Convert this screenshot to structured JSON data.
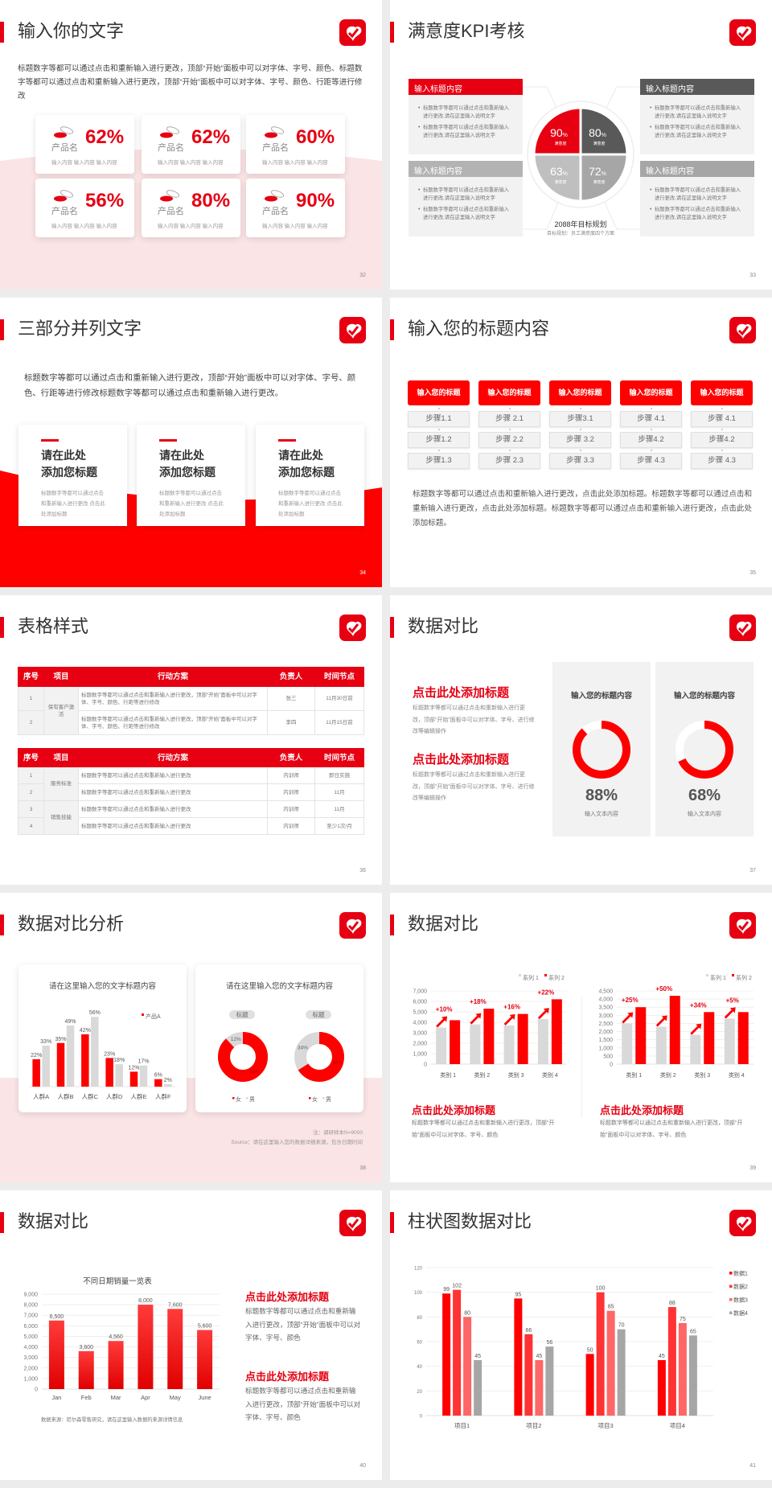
{
  "colors": {
    "accent": "#e60012",
    "dark_gray": "#595959",
    "mid_gray": "#a6a6a6",
    "light_gray": "#f2f2f2",
    "pink": "#fbe4e5"
  },
  "slides": {
    "s32": {
      "title": "输入你的文字",
      "page": "32",
      "body": "标题数字等都可以通过点击和重新输入进行更改，顶部“开始”面板中可以对字体、字号、颜色、标题数字等都可以通过点击和重新输入进行更改，顶部“开始”面板中可以对字体、字号、颜色、行距等进行修改",
      "cards": [
        {
          "icon": "pill-icon",
          "name": "产品名",
          "pct": "62%",
          "sub": "输入内容  输入内容  输入内容"
        },
        {
          "icon": "pill-icon",
          "name": "产品名",
          "pct": "62%",
          "sub": "输入内容  输入内容  输入内容"
        },
        {
          "icon": "pill-icon",
          "name": "产品名",
          "pct": "60%",
          "sub": "输入内容  输入内容  输入内容"
        },
        {
          "icon": "pill-icon",
          "name": "产品名",
          "pct": "56%",
          "sub": "输入内容  输入内容  输入内容"
        },
        {
          "icon": "pill-icon",
          "name": "产品名",
          "pct": "80%",
          "sub": "输入内容  输入内容  输入内容"
        },
        {
          "icon": "pill-icon",
          "name": "产品名",
          "pct": "90%",
          "sub": "输入内容  输入内容  输入内容"
        }
      ]
    },
    "s33": {
      "title": "满意度KPI考核",
      "page": "33",
      "boxes": [
        {
          "header": "输入标题内容",
          "header_color": "#e60012",
          "bullets": [
            "标题数字等都可以通过点击和重新输入进行更改,请在这里输入说明文字",
            "标题数字等都可以通过点击和重新输入进行更改,请在这里输入说明文字"
          ]
        },
        {
          "header": "输入标题内容",
          "header_color": "#595959",
          "bullets": [
            "标题数字等都可以通过点击和重新输入进行更改,请在这里输入说明文字",
            "标题数字等都可以通过点击和重新输入进行更改,请在这里输入说明文字"
          ]
        },
        {
          "header": "输入标题内容",
          "header_color": "#b3b3b3",
          "bullets": [
            "标题数字等都可以通过点击和重新输入进行更改,请在这里输入说明文字",
            "标题数字等都可以通过点击和重新输入进行更改,请在这里输入说明文字"
          ]
        },
        {
          "header": "输入标题内容",
          "header_color": "#a6a6a6",
          "bullets": [
            "标题数字等都可以通过点击和重新输入进行更改,请在这里输入说明文字",
            "标题数字等都可以通过点击和重新输入进行更改,请在这里输入说明文字"
          ]
        }
      ],
      "quadrants": [
        {
          "value": "90",
          "unit": "%",
          "label": "满意度",
          "color": "#e60012"
        },
        {
          "value": "80",
          "unit": "%",
          "label": "满意度",
          "color": "#595959"
        },
        {
          "value": "63",
          "unit": "%",
          "label": "满意度",
          "color": "#bfbfbf"
        },
        {
          "value": "72",
          "unit": "%",
          "label": "满意度",
          "color": "#a6a6a6"
        }
      ],
      "center_title": "2088年目标规划",
      "center_sub": "目标规划：员工满意度四个方面"
    },
    "s34": {
      "title": "三部分并列文字",
      "page": "34",
      "body": "标题数字等都可以通过点击和重新输入进行更改，顶部“开始”面板中可以对字体、字号、颜色、行距等进行修改标题数字等都可以通过点击和重新输入进行更改。",
      "cards": [
        {
          "title1": "请在此处",
          "title2": "添加您标题",
          "text": "标题数字等都可以通过点击和重新输入进行更改  点击此处添加标题"
        },
        {
          "title1": "请在此处",
          "title2": "添加您标题",
          "text": "标题数字等都可以通过点击和重新输入进行更改  点击此处添加标题"
        },
        {
          "title1": "请在此处",
          "title2": "添加您标题",
          "text": "标题数字等都可以通过点击和重新输入进行更改  点击此处添加标题"
        }
      ]
    },
    "s35": {
      "title": "输入您的标题内容",
      "page": "35",
      "columns": [
        {
          "header": "输入您的标题",
          "steps": [
            "步骤1.1",
            "步骤1.2",
            "步骤1.3"
          ]
        },
        {
          "header": "输入您的标题",
          "steps": [
            "步骤 2.1",
            "步骤 2.2",
            "步骤 2.3"
          ]
        },
        {
          "header": "输入您的标题",
          "steps": [
            "步骤3.1",
            "步骤 3.2",
            "步骤 3.3"
          ]
        },
        {
          "header": "输入您的标题",
          "steps": [
            "步骤 4.1",
            "步骤4.2",
            "步骤 4.3"
          ]
        },
        {
          "header": "输入您的标题",
          "steps": [
            "步骤 4.1",
            "步骤4.2",
            "步骤 4.3"
          ]
        }
      ],
      "body": "标题数字等都可以通过点击和重新输入进行更改，点击此处添加标题。标题数字等都可以通过点击和重新输入进行更改，点击此处添加标题。标题数字等都可以通过点击和重新输入进行更改，点击此处添加标题。"
    },
    "s36": {
      "title": "表格样式",
      "page": "36",
      "headers": [
        "序号",
        "项目",
        "行动方案",
        "负责人",
        "时间节点"
      ],
      "table1": {
        "groups": [
          "保有客户激活"
        ],
        "rows": [
          {
            "no": "1",
            "plan": "标题数字等都可以通过点击和重新输入进行更改，顶部“开始”面板中可以对字体、字号、颜色、行距等进行修改",
            "owner": "张三",
            "time": "11月30日前"
          },
          {
            "no": "2",
            "plan": "标题数字等都可以通过点击和重新输入进行更改，顶部“开始”面板中可以对字体、字号、颜色、行距等进行修改",
            "owner": "李四",
            "time": "11月15日前"
          }
        ]
      },
      "table2": {
        "groups": [
          "服务标准",
          "销售技能"
        ],
        "rows": [
          {
            "no": "1",
            "plan": "标题数字等都可以通过点击和重新输入进行更改",
            "owner": "内训师",
            "time": "即日实施"
          },
          {
            "no": "2",
            "plan": "标题数字等都可以通过点击和重新输入进行更改",
            "owner": "内训师",
            "time": "11月"
          },
          {
            "no": "3",
            "plan": "标题数字等都可以通过点击和重新输入进行更改",
            "owner": "内训师",
            "time": "11月"
          },
          {
            "no": "4",
            "plan": "标题数字等都可以通过点击和重新输入进行更改",
            "owner": "内训师",
            "time": "至少1次/月"
          }
        ]
      }
    },
    "s37": {
      "title": "数据对比",
      "page": "37",
      "blocks": [
        {
          "heading": "点击此处添加标题",
          "text": "标题数字等都可以通过点击和重新输入进行更改，顶部“开始”面板中可以对字体、字号、进行修改等编辑操作"
        },
        {
          "heading": "点击此处添加标题",
          "text": "标题数字等都可以通过点击和重新输入进行更改，顶部“开始”面板中可以对字体、字号、进行修改等编辑操作"
        }
      ],
      "panels": [
        {
          "title": "输入您的标题内容",
          "value": 88,
          "pct": "88%",
          "sub": "输入文本内容"
        },
        {
          "title": "输入您的标题内容",
          "value": 68,
          "pct": "68%",
          "sub": "输入文本内容"
        }
      ]
    },
    "s38": {
      "title": "数据对比分析",
      "page": "38",
      "bar_title": "请在这里输入您的文字标题内容",
      "donut_title": "请在这里输入您的文字标题内容",
      "note": "注：调研样本N=9000",
      "source": "Source：请在这里输入您的数据详细来源，包含日期时间"
    },
    "s39": {
      "title": "数据对比",
      "page": "39",
      "blocks": [
        {
          "heading": "点击此处添加标题",
          "text": "标题数字等都可以通过点击和重新输入进行更改，顶部“开始”面板中可以对字体、字号、颜色"
        },
        {
          "heading": "点击此处添加标题",
          "text": "标题数字等都可以通过点击和重新输入进行更改，顶部“开始”面板中可以对字体、字号、颜色"
        }
      ]
    },
    "s40": {
      "title": "数据对比",
      "page": "40",
      "source": "数据来源：尼尔森零售研究，请在这里输入数据的来源详情信息",
      "blocks": [
        {
          "heading": "点击此处添加标题",
          "text": "标题数字等都可以通过点击和重新输入进行更改，顶部“开始”面板中可以对字体、字号、颜色"
        },
        {
          "heading": "点击此处添加标题",
          "text": "标题数字等都可以通过点击和重新输入进行更改，顶部“开始”面板中可以对字体、字号、颜色"
        }
      ]
    },
    "s41": {
      "title": "柱状图数据对比",
      "page": "41"
    }
  },
  "chart_data": [
    {
      "type": "bar",
      "title": "请在这里输入您的文字标题内容",
      "categories": [
        "人群A",
        "人群B",
        "人群C",
        "人群D",
        "人群E",
        "人群F"
      ],
      "series": [
        {
          "name": "产品A",
          "color": "#ff0000",
          "values": [
            22,
            35,
            42,
            23,
            12,
            6
          ],
          "labels": [
            "22%",
            "35%",
            "42%",
            "23%",
            "12%",
            "6%"
          ]
        },
        {
          "color": "#d9d9d9",
          "values": [
            33,
            49,
            56,
            18,
            17,
            2
          ],
          "labels": [
            "33%",
            "49%",
            "56%",
            "18%",
            "17%",
            "2%"
          ]
        }
      ],
      "ylim": [
        0,
        60
      ],
      "grid": false,
      "legend": "top-right"
    },
    {
      "type": "pie",
      "subtype": "donut",
      "charts": [
        {
          "title": "标题",
          "slices": [
            {
              "name": "女",
              "value": 88,
              "label": "88%",
              "color": "#ff0000"
            },
            {
              "name": "男",
              "value": 12,
              "label": "12%",
              "color": "#d9d9d9"
            }
          ]
        },
        {
          "title": "标题",
          "slices": [
            {
              "name": "女",
              "value": 66,
              "label": "66%",
              "color": "#ff0000"
            },
            {
              "name": "男",
              "value": 34,
              "label": "34%",
              "color": "#d9d9d9"
            }
          ]
        }
      ],
      "legend": "bottom"
    },
    {
      "type": "bar",
      "categories": [
        "类别 1",
        "类别 2",
        "类别 3",
        "类别 4"
      ],
      "series": [
        {
          "name": "系列 1",
          "color": "#d9d9d9",
          "values": [
            3500,
            3800,
            3700,
            4300
          ]
        },
        {
          "name": "系列 2",
          "color": "#ff0000",
          "values": [
            4200,
            5300,
            4800,
            6200
          ]
        }
      ],
      "annotations": [
        "+10%",
        "+18%",
        "+16%",
        "+22%"
      ],
      "ylim": [
        0,
        7000
      ],
      "ystep": 1000,
      "yticks": [
        "0",
        "1,000",
        "2,000",
        "3,000",
        "4,000",
        "5,000",
        "6,000",
        "7,000"
      ],
      "grid": true,
      "legend": "top-right"
    },
    {
      "type": "bar",
      "categories": [
        "类别 1",
        "类别 2",
        "类别 3",
        "类别 4"
      ],
      "series": [
        {
          "name": "系列 1",
          "color": "#d9d9d9",
          "values": [
            2500,
            2300,
            1800,
            2800
          ]
        },
        {
          "name": "系列 2",
          "color": "#ff0000",
          "values": [
            3500,
            4200,
            3200,
            3200
          ]
        }
      ],
      "annotations": [
        "+25%",
        "+50%",
        "+34%",
        "+5%"
      ],
      "ylim": [
        0,
        4500
      ],
      "ystep": 500,
      "yticks": [
        "0",
        "500",
        "1,000",
        "1,500",
        "2,000",
        "2,500",
        "3,000",
        "3,500",
        "4,000",
        "4,500"
      ],
      "grid": true,
      "legend": "top-right"
    },
    {
      "type": "bar",
      "title": "不同日期销量一览表",
      "categories": [
        "Jan",
        "Feb",
        "Mar",
        "Apr",
        "May",
        "June"
      ],
      "series": [
        {
          "color": "#e60012",
          "values": [
            6500,
            3600,
            4560,
            8000,
            7600,
            5600
          ],
          "labels": [
            "6,500",
            "3,600",
            "4,560",
            "8,000",
            "7,600",
            "5,600"
          ]
        }
      ],
      "ylim": [
        0,
        9000
      ],
      "ystep": 1000,
      "yticks": [
        "0",
        "1,000",
        "2,000",
        "3,000",
        "4,000",
        "5,000",
        "6,000",
        "7,000",
        "8,000",
        "9,000"
      ],
      "grid": true
    },
    {
      "type": "bar",
      "categories": [
        "项目1",
        "项目2",
        "项目3",
        "项目4"
      ],
      "series": [
        {
          "name": "数据1",
          "color": "#ff0000",
          "values": [
            99,
            95,
            50,
            45
          ]
        },
        {
          "name": "数据2",
          "color": "#ff3333",
          "values": [
            102,
            66,
            100,
            88
          ]
        },
        {
          "name": "数据3",
          "color": "#ff6666",
          "values": [
            80,
            45,
            85,
            75
          ]
        },
        {
          "name": "数据4",
          "color": "#a6a6a6",
          "values": [
            45,
            56,
            70,
            65
          ]
        }
      ],
      "ylim": [
        0,
        120
      ],
      "ystep": 20,
      "yticks": [
        "0",
        "20",
        "40",
        "60",
        "80",
        "100",
        "120"
      ],
      "grid": true,
      "legend": "right"
    }
  ]
}
